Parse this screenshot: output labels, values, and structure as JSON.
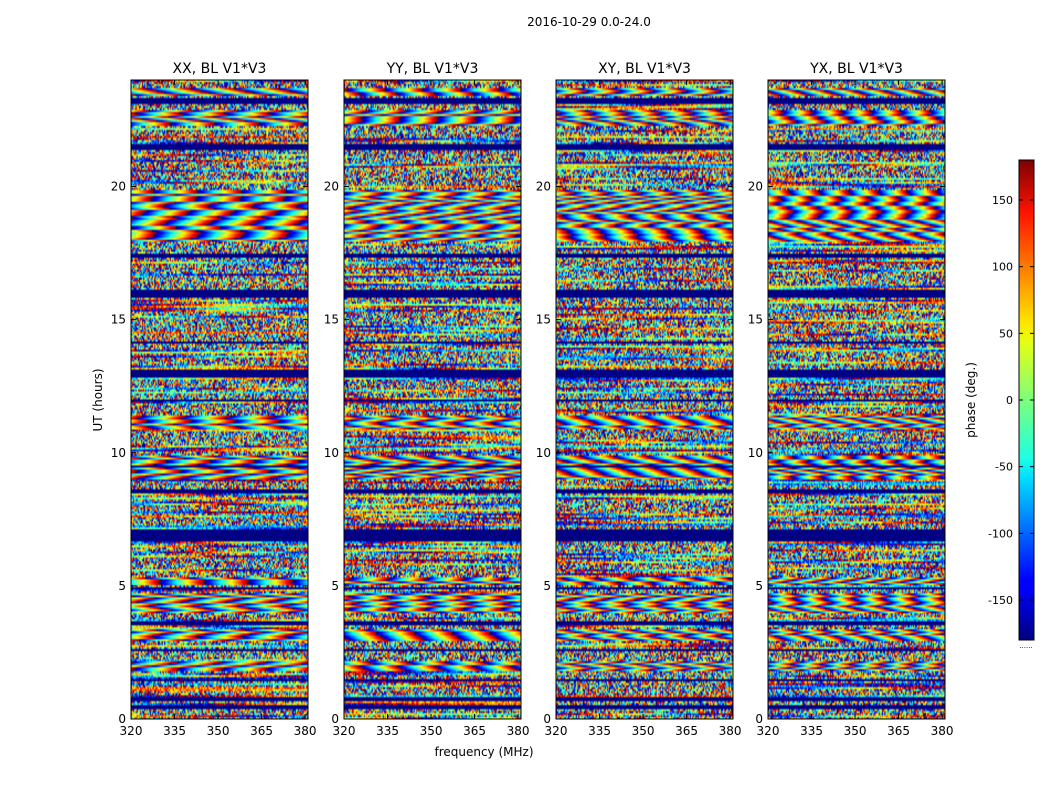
{
  "figure": {
    "suptitle": "2016-10-29 0.0-24.0",
    "xlabel": "frequency (MHz)",
    "ylabel": "UT (hours)",
    "colorbar_label": "phase (deg.)",
    "colorbar_footnote": "......"
  },
  "chart_data": {
    "type": "heatmap",
    "title": "2016-10-29 0.0-24.0",
    "xlabel": "frequency (MHz)",
    "ylabel": "UT (hours)",
    "xlim": [
      320,
      381
    ],
    "ylim": [
      0,
      24
    ],
    "x_ticks": [
      "320",
      "335",
      "350",
      "365",
      "380"
    ],
    "x_tick_values": [
      320,
      335,
      350,
      365,
      380
    ],
    "y_ticks": [
      "0",
      "5",
      "10",
      "15",
      "20"
    ],
    "y_tick_values": [
      0,
      5,
      10,
      15,
      20
    ],
    "colormap": "jet",
    "value_range": [
      -180,
      180
    ],
    "colorbar_ticks": [
      "-150",
      "-100",
      "-50",
      "0",
      "50",
      "100",
      "150"
    ],
    "colorbar_tick_values": [
      -150,
      -100,
      -50,
      0,
      50,
      100,
      150
    ],
    "panels": [
      {
        "title": "XX, BL V1*V3",
        "polarization": "XX",
        "baseline": "V1*V3"
      },
      {
        "title": "YY, BL V1*V3",
        "polarization": "YY",
        "baseline": "V1*V3"
      },
      {
        "title": "XY, BL V1*V3",
        "polarization": "XY",
        "baseline": "V1*V3"
      },
      {
        "title": "YX, BL V1*V3",
        "polarization": "YX",
        "baseline": "V1*V3"
      }
    ],
    "flagged_time_bands_hours": [
      [
        0.35,
        0.5
      ],
      [
        0.7,
        0.8
      ],
      [
        1.4,
        1.5
      ],
      [
        2.55,
        2.65
      ],
      [
        3.55,
        3.65
      ],
      [
        4.85,
        4.95
      ],
      [
        6.7,
        7.1
      ],
      [
        8.5,
        8.6
      ],
      [
        9.45,
        9.55
      ],
      [
        11.9,
        12.0
      ],
      [
        12.85,
        13.1
      ],
      [
        14.1,
        14.2
      ],
      [
        15.85,
        16.1
      ],
      [
        17.3,
        17.5
      ],
      [
        21.4,
        21.6
      ],
      [
        23.1,
        23.3
      ]
    ],
    "fringe_time_bands_hours": [
      [
        1.8,
        2.2
      ],
      [
        2.9,
        3.4
      ],
      [
        4.0,
        4.7
      ],
      [
        5.0,
        5.3
      ],
      [
        9.0,
        9.9
      ],
      [
        10.9,
        11.4
      ],
      [
        17.9,
        19.9
      ],
      [
        22.3,
        22.9
      ],
      [
        23.4,
        23.7
      ]
    ]
  }
}
